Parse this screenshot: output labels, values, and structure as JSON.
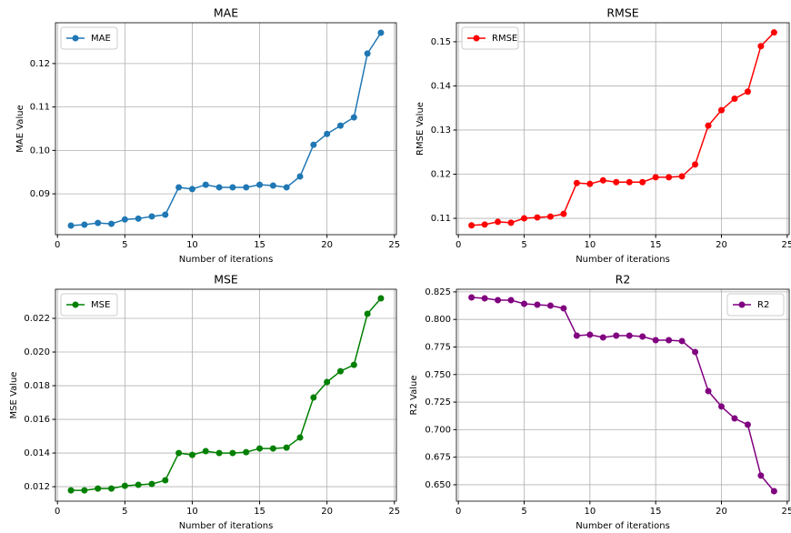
{
  "chart_data": [
    {
      "type": "line",
      "title": "MAE",
      "xlabel": "Number of iterations",
      "ylabel": "MAE Value",
      "grid": true,
      "legend": "upper left",
      "x": [
        1,
        2,
        3,
        4,
        5,
        6,
        7,
        8,
        9,
        10,
        11,
        12,
        13,
        14,
        15,
        16,
        17,
        18,
        19,
        20,
        21,
        22,
        23,
        24
      ],
      "series": [
        {
          "name": "MAE",
          "color": "#1f77b4",
          "values": [
            0.0827,
            0.0829,
            0.0833,
            0.0831,
            0.0841,
            0.0843,
            0.0848,
            0.0852,
            0.0915,
            0.0911,
            0.0921,
            0.0915,
            0.0915,
            0.0915,
            0.0921,
            0.0919,
            0.0915,
            0.094,
            0.1013,
            0.1038,
            0.1057,
            0.1076,
            0.1223,
            0.1271
          ]
        }
      ],
      "xlim": [
        -0.15,
        25.15
      ],
      "xticks": [
        0,
        5,
        10,
        15,
        20,
        25
      ],
      "ylim": [
        0.0806,
        0.1294
      ],
      "yticks": [
        {
          "value": 0.09,
          "label": "0.09"
        },
        {
          "value": 0.1,
          "label": "0.10"
        },
        0.11,
        0.12
      ]
    },
    {
      "type": "line",
      "title": "RMSE",
      "xlabel": "Number of iterations",
      "ylabel": "RMSE Value",
      "grid": true,
      "legend": "upper left",
      "x": [
        1,
        2,
        3,
        4,
        5,
        6,
        7,
        8,
        9,
        10,
        11,
        12,
        13,
        14,
        15,
        16,
        17,
        18,
        19,
        20,
        21,
        22,
        23,
        24
      ],
      "series": [
        {
          "name": "RMSE",
          "color": "#ff0000",
          "values": [
            0.1084,
            0.1086,
            0.1092,
            0.109,
            0.11,
            0.1102,
            0.1104,
            0.111,
            0.118,
            0.1178,
            0.1186,
            0.1182,
            0.1182,
            0.1182,
            0.1193,
            0.1193,
            0.1195,
            0.1222,
            0.131,
            0.1345,
            0.1371,
            0.1387,
            0.149,
            0.1521
          ]
        }
      ],
      "xlim": [
        -0.15,
        25.15
      ],
      "xticks": [
        0,
        5,
        10,
        15,
        20,
        25
      ],
      "ylim": [
        0.1063,
        0.1543
      ],
      "yticks": [
        0.11,
        0.12,
        0.13,
        0.14,
        0.15
      ]
    },
    {
      "type": "line",
      "title": "MSE",
      "xlabel": "Number of iterations",
      "ylabel": "MSE Value",
      "grid": true,
      "legend": "upper left",
      "x": [
        1,
        2,
        3,
        4,
        5,
        6,
        7,
        8,
        9,
        10,
        11,
        12,
        13,
        14,
        15,
        16,
        17,
        18,
        19,
        20,
        21,
        22,
        23,
        24
      ],
      "series": [
        {
          "name": "MSE",
          "color": "#008000",
          "values": [
            0.01178,
            0.01178,
            0.01189,
            0.01189,
            0.01205,
            0.01211,
            0.01216,
            0.01238,
            0.014,
            0.01389,
            0.01411,
            0.014,
            0.014,
            0.01405,
            0.01427,
            0.01427,
            0.01432,
            0.01492,
            0.0173,
            0.01822,
            0.01886,
            0.01924,
            0.02227,
            0.02319
          ]
        }
      ],
      "xlim": [
        -0.15,
        25.15
      ],
      "xticks": [
        0,
        5,
        10,
        15,
        20,
        25
      ],
      "ylim": [
        0.01114,
        0.02373
      ],
      "yticks": [
        0.012,
        0.014,
        0.016,
        0.018,
        {
          "value": 0.02,
          "label": "0.020"
        },
        0.022
      ]
    },
    {
      "type": "line",
      "title": "R2",
      "xlabel": "Number of iterations",
      "ylabel": "R2 Value",
      "grid": true,
      "legend": "upper right",
      "x": [
        1,
        2,
        3,
        4,
        5,
        6,
        7,
        8,
        9,
        10,
        11,
        12,
        13,
        14,
        15,
        16,
        17,
        18,
        19,
        20,
        21,
        22,
        23,
        24
      ],
      "series": [
        {
          "name": "R2",
          "color": "#800080",
          "values": [
            0.82,
            0.8191,
            0.8175,
            0.8175,
            0.8142,
            0.8134,
            0.8125,
            0.8101,
            0.7853,
            0.7861,
            0.7837,
            0.7853,
            0.7853,
            0.7845,
            0.7812,
            0.7812,
            0.7804,
            0.7705,
            0.735,
            0.721,
            0.7102,
            0.7045,
            0.6583,
            0.6442
          ]
        }
      ],
      "xlim": [
        -0.15,
        25.15
      ],
      "xticks": [
        0,
        5,
        10,
        15,
        20,
        25
      ],
      "ylim": [
        0.6351,
        0.8274
      ],
      "yticks": [
        {
          "value": 0.65,
          "label": "0.650"
        },
        0.675,
        {
          "value": 0.7,
          "label": "0.700"
        },
        0.725,
        {
          "value": 0.75,
          "label": "0.750"
        },
        0.775,
        {
          "value": 0.8,
          "label": "0.800"
        },
        0.825
      ]
    }
  ]
}
